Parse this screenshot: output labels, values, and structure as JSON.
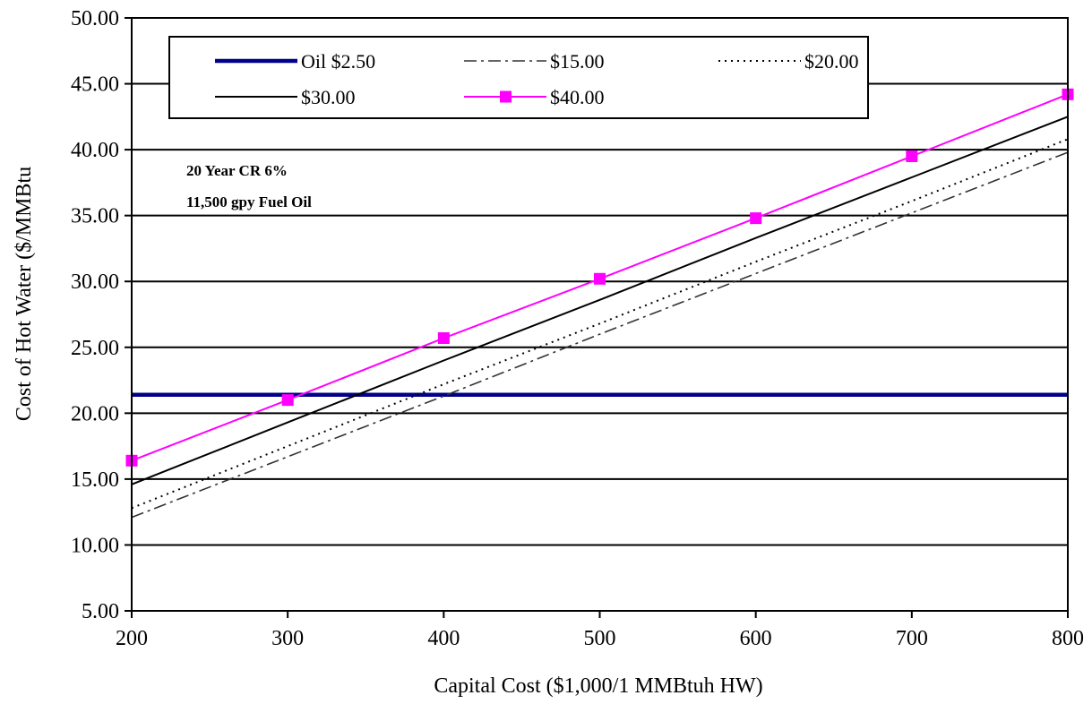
{
  "chart_data": {
    "type": "line",
    "xlabel": "Capital Cost ($1,000/1 MMBtuh HW)",
    "ylabel": "Cost of Hot Water ($/MMBtu",
    "xlim": [
      200,
      800
    ],
    "ylim": [
      5,
      50
    ],
    "x_ticks": [
      "200",
      "300",
      "400",
      "500",
      "600",
      "700",
      "800"
    ],
    "y_ticks": [
      "5.00",
      "10.00",
      "15.00",
      "20.00",
      "25.00",
      "30.00",
      "35.00",
      "40.00",
      "45.00",
      "50.00"
    ],
    "grid": "horizontal",
    "legend_position": "top",
    "annotations": [
      "20 Year CR 6%",
      "11,500 gpy Fuel Oil"
    ],
    "x": [
      200,
      300,
      400,
      500,
      600,
      700,
      800
    ],
    "series": [
      {
        "name": "Oil $2.50",
        "style": "solid-thick",
        "color": "#00008b",
        "values": [
          21.4,
          21.4,
          21.4,
          21.4,
          21.4,
          21.4,
          21.4
        ]
      },
      {
        "name": "$15.00",
        "style": "dash-dot",
        "color": "#333333",
        "values": [
          12.1,
          16.7,
          21.3,
          26.0,
          30.6,
          35.2,
          39.8
        ]
      },
      {
        "name": "$20.00",
        "style": "dotted",
        "color": "#000000",
        "values": [
          12.8,
          17.5,
          22.2,
          26.8,
          31.5,
          36.1,
          40.8
        ]
      },
      {
        "name": "$30.00",
        "style": "solid",
        "color": "#000000",
        "values": [
          14.6,
          19.3,
          24.0,
          28.6,
          33.3,
          37.9,
          42.5
        ]
      },
      {
        "name": "$40.00",
        "style": "solid-marker",
        "color": "#ff00ff",
        "values": [
          16.4,
          21.0,
          25.7,
          30.2,
          34.8,
          39.5,
          44.2
        ]
      }
    ]
  }
}
